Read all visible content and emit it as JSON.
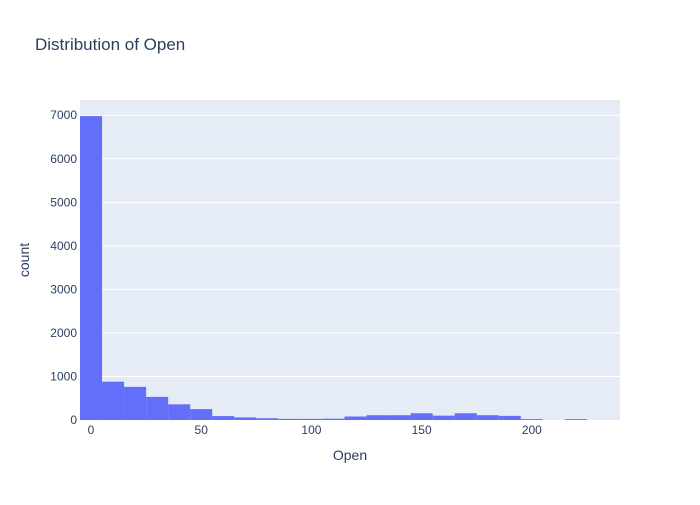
{
  "chart_data": {
    "type": "bar",
    "title": "Distribution of Open",
    "xlabel": "Open",
    "ylabel": "count",
    "bin_edges": [
      -5,
      5,
      15,
      25,
      35,
      45,
      55,
      65,
      75,
      85,
      95,
      105,
      115,
      125,
      135,
      145,
      155,
      165,
      175,
      185,
      195,
      205,
      215,
      225,
      235
    ],
    "values": [
      6980,
      880,
      760,
      530,
      360,
      250,
      90,
      60,
      40,
      25,
      25,
      30,
      80,
      110,
      110,
      155,
      100,
      155,
      110,
      95,
      20,
      0,
      20,
      0
    ],
    "xlim": [
      -5,
      240
    ],
    "ylim": [
      0,
      7350
    ],
    "x_ticks": [
      0,
      50,
      100,
      150,
      200
    ],
    "x_tick_labels": [
      "0",
      "50",
      "100",
      "150",
      "200"
    ],
    "y_ticks": [
      0,
      1000,
      2000,
      3000,
      4000,
      5000,
      6000,
      7000
    ],
    "y_tick_labels": [
      "0",
      "1000",
      "2000",
      "3000",
      "4000",
      "5000",
      "6000",
      "7000"
    ],
    "grid": true,
    "colors": {
      "bar": "#636efa",
      "plot_bg": "#e5ecf6",
      "grid": "#ffffff",
      "title": "#2a3f5f",
      "axis_text": "#2a3f5f"
    }
  }
}
